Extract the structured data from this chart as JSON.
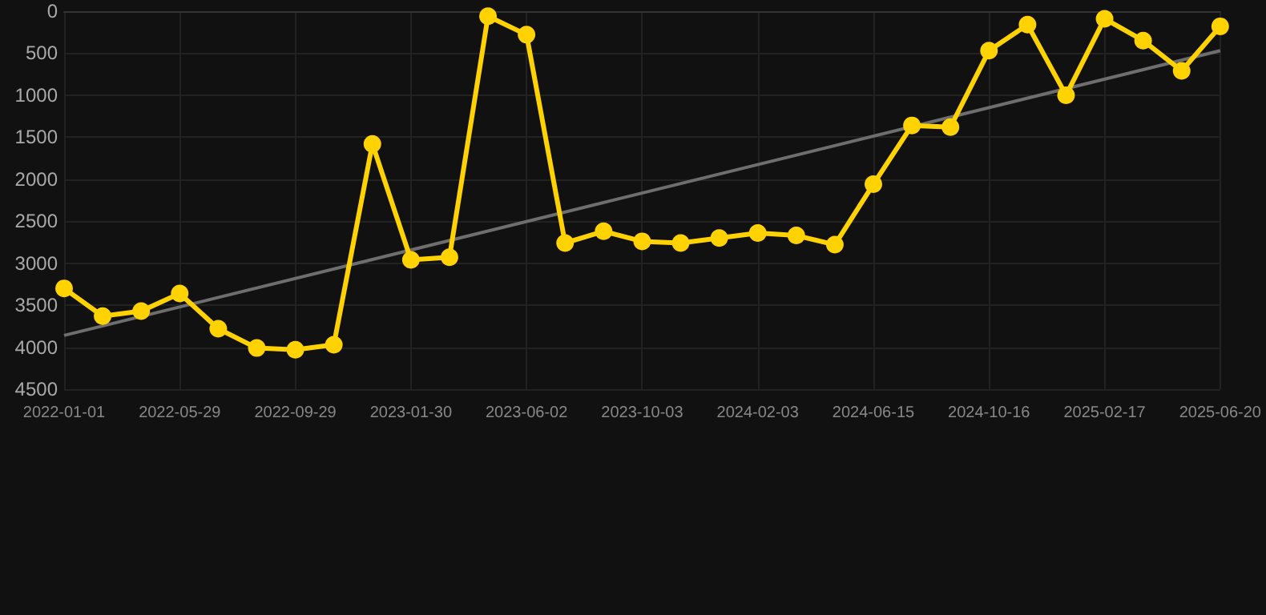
{
  "chart_data": {
    "type": "line",
    "categories": [
      "2022-01-01",
      null,
      null,
      "2022-05-29",
      null,
      null,
      "2022-09-29",
      null,
      null,
      "2023-01-30",
      null,
      null,
      "2023-06-02",
      null,
      null,
      "2023-10-03",
      null,
      null,
      "2024-02-03",
      null,
      null,
      "2024-06-15",
      null,
      null,
      "2024-10-16",
      null,
      null,
      "2025-02-17",
      null,
      null,
      "2025-06-20"
    ],
    "series": [
      {
        "color": "#ffd200",
        "values": [
          3300,
          3630,
          3570,
          3360,
          3780,
          4010,
          4030,
          3970,
          1580,
          2960,
          2930,
          60,
          280,
          2760,
          2620,
          2740,
          2760,
          2700,
          2640,
          2670,
          2780,
          2060,
          1360,
          1380,
          470,
          160,
          1000,
          90,
          350,
          710,
          180
        ]
      },
      {
        "type": "line",
        "color": "#6e6e6e",
        "marker": "none",
        "values": [
          3860,
          null,
          null,
          null,
          null,
          null,
          null,
          null,
          null,
          null,
          null,
          null,
          null,
          null,
          null,
          null,
          null,
          null,
          null,
          null,
          null,
          null,
          null,
          null,
          null,
          null,
          null,
          null,
          null,
          null,
          470
        ]
      }
    ],
    "ylim": [
      4500,
      0
    ],
    "yticks": [
      0,
      500,
      1000,
      1500,
      2000,
      2500,
      3000,
      3500,
      4000,
      4500
    ],
    "grid": true,
    "marker": "circle"
  }
}
